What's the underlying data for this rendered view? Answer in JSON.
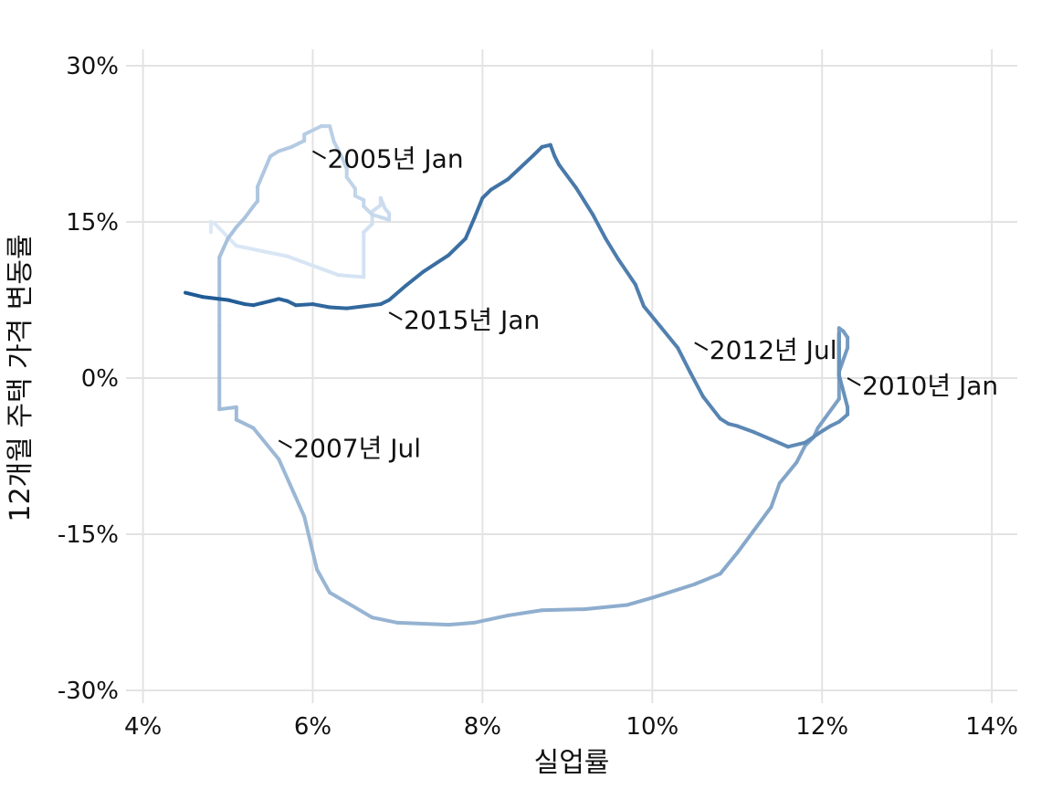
{
  "chart_data": {
    "type": "line",
    "title": "",
    "xlabel": "실업률",
    "ylabel": "12개월 주택 가격 변동률",
    "xlim": [
      3.8,
      14.3
    ],
    "ylim": [
      -30,
      30
    ],
    "x_ticks": [
      4,
      6,
      8,
      10,
      12,
      14
    ],
    "x_tick_labels": [
      "4%",
      "6%",
      "8%",
      "10%",
      "12%",
      "14%"
    ],
    "y_ticks": [
      30,
      15,
      0,
      -15,
      -30
    ],
    "y_tick_labels": [
      "30%",
      "15%",
      "0%",
      "-15%",
      "-30%"
    ],
    "grid": true,
    "legend": "none",
    "color_gradient": [
      "#dde9f7",
      "#1f5a94"
    ],
    "series": [
      {
        "points": [
          [
            4.8,
            14.0
          ],
          [
            4.8,
            15.0
          ],
          [
            4.85,
            14.8
          ],
          [
            5.1,
            12.7
          ],
          [
            5.7,
            11.7
          ],
          [
            6.1,
            10.5
          ],
          [
            6.3,
            9.9
          ],
          [
            6.6,
            9.7
          ],
          [
            6.6,
            14.0
          ],
          [
            6.7,
            14.8
          ],
          [
            6.7,
            16.0
          ],
          [
            6.8,
            16.6
          ],
          [
            6.8,
            17.3
          ],
          [
            6.85,
            16.3
          ],
          [
            6.9,
            15.8
          ],
          [
            6.9,
            15.2
          ],
          [
            6.7,
            15.7
          ],
          [
            6.6,
            16.5
          ],
          [
            6.6,
            17.1
          ],
          [
            6.5,
            17.5
          ],
          [
            6.5,
            18.2
          ],
          [
            6.4,
            19.3
          ],
          [
            6.4,
            20.1
          ],
          [
            6.35,
            21.1
          ],
          [
            6.25,
            22.7
          ],
          [
            6.2,
            24.2
          ],
          [
            6.1,
            24.2
          ],
          [
            5.95,
            23.6
          ],
          [
            5.9,
            23.4
          ],
          [
            5.9,
            22.8
          ],
          [
            5.75,
            22.2
          ],
          [
            5.6,
            21.8
          ],
          [
            5.5,
            21.3
          ],
          [
            5.35,
            18.4
          ],
          [
            5.35,
            17.0
          ],
          [
            5.3,
            16.5
          ],
          [
            5.2,
            15.4
          ],
          [
            5.1,
            14.5
          ],
          [
            5.0,
            13.4
          ],
          [
            4.95,
            12.5
          ],
          [
            4.9,
            11.6
          ],
          [
            4.9,
            5.0
          ],
          [
            4.9,
            0.0
          ],
          [
            4.9,
            -3.0
          ],
          [
            5.1,
            -2.8
          ],
          [
            5.1,
            -4.0
          ],
          [
            5.3,
            -4.8
          ],
          [
            5.6,
            -7.8
          ],
          [
            5.9,
            -13.3
          ],
          [
            6.05,
            -18.4
          ],
          [
            6.2,
            -20.6
          ],
          [
            6.7,
            -23.0
          ],
          [
            7.0,
            -23.5
          ],
          [
            7.6,
            -23.7
          ],
          [
            7.9,
            -23.5
          ],
          [
            8.3,
            -22.8
          ],
          [
            8.7,
            -22.3
          ],
          [
            9.2,
            -22.2
          ],
          [
            9.7,
            -21.8
          ],
          [
            10.0,
            -21.1
          ],
          [
            10.5,
            -19.8
          ],
          [
            10.8,
            -18.8
          ],
          [
            11.0,
            -16.8
          ],
          [
            11.2,
            -14.6
          ],
          [
            11.4,
            -12.4
          ],
          [
            11.5,
            -10.1
          ],
          [
            11.7,
            -8.1
          ],
          [
            11.8,
            -6.5
          ],
          [
            11.9,
            -5.7
          ],
          [
            11.95,
            -4.8
          ],
          [
            12.2,
            -2.0
          ],
          [
            12.2,
            0.0
          ],
          [
            12.2,
            4.8
          ],
          [
            12.25,
            4.5
          ],
          [
            12.3,
            3.9
          ],
          [
            12.3,
            2.9
          ],
          [
            12.2,
            0.6
          ],
          [
            12.2,
            0.2
          ],
          [
            12.2,
            0.6
          ],
          [
            12.2,
            1.6
          ],
          [
            12.2,
            4.3
          ],
          [
            12.2,
            3.2
          ],
          [
            12.2,
            2.9
          ],
          [
            12.2,
            1.4
          ],
          [
            12.2,
            0.3
          ],
          [
            12.3,
            -2.8
          ],
          [
            12.3,
            -3.5
          ],
          [
            12.2,
            -4.2
          ],
          [
            12.1,
            -4.6
          ],
          [
            12.0,
            -5.1
          ],
          [
            11.8,
            -6.2
          ],
          [
            11.6,
            -6.6
          ],
          [
            11.4,
            -5.9
          ],
          [
            11.2,
            -5.2
          ],
          [
            11.0,
            -4.6
          ],
          [
            10.9,
            -4.4
          ],
          [
            10.8,
            -3.9
          ],
          [
            10.6,
            -1.8
          ],
          [
            10.45,
            0.5
          ],
          [
            10.3,
            2.9
          ],
          [
            10.1,
            4.9
          ],
          [
            9.9,
            6.9
          ],
          [
            9.8,
            9.0
          ],
          [
            9.6,
            11.4
          ],
          [
            9.45,
            13.4
          ],
          [
            9.3,
            15.7
          ],
          [
            9.1,
            18.3
          ],
          [
            8.9,
            20.5
          ],
          [
            8.85,
            21.3
          ],
          [
            8.8,
            22.4
          ],
          [
            8.7,
            22.2
          ],
          [
            8.6,
            21.4
          ],
          [
            8.3,
            19.1
          ],
          [
            8.1,
            18.1
          ],
          [
            8.0,
            17.3
          ],
          [
            7.9,
            15.3
          ],
          [
            7.8,
            13.4
          ],
          [
            7.6,
            11.8
          ],
          [
            7.3,
            10.2
          ],
          [
            7.1,
            8.9
          ],
          [
            6.9,
            7.5
          ],
          [
            6.8,
            7.1
          ],
          [
            6.6,
            6.9
          ],
          [
            6.4,
            6.7
          ],
          [
            6.2,
            6.8
          ],
          [
            6.0,
            7.1
          ],
          [
            5.8,
            7.0
          ],
          [
            5.7,
            7.4
          ],
          [
            5.6,
            7.6
          ],
          [
            5.5,
            7.4
          ],
          [
            5.4,
            7.2
          ],
          [
            5.3,
            7.0
          ],
          [
            5.2,
            7.1
          ],
          [
            5.1,
            7.3
          ],
          [
            5.0,
            7.5
          ],
          [
            4.9,
            7.6
          ],
          [
            4.7,
            7.8
          ],
          [
            4.5,
            8.2
          ]
        ]
      }
    ],
    "annotations": [
      {
        "text": "2005년 Jan",
        "x": 6.0,
        "y": 21.8
      },
      {
        "text": "2007년 Jul",
        "x": 5.6,
        "y": -6.0
      },
      {
        "text": "2010년 Jan",
        "x": 12.3,
        "y": 0.0
      },
      {
        "text": "2012년 Jul",
        "x": 10.5,
        "y": 3.4
      },
      {
        "text": "2015년 Jan",
        "x": 6.9,
        "y": 6.3
      }
    ]
  }
}
